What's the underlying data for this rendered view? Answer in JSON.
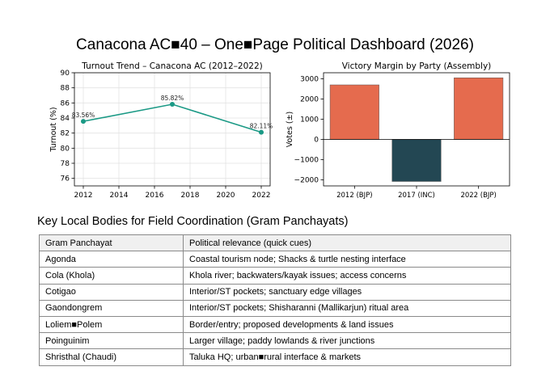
{
  "page": {
    "title": "Canacona AC■40 – One■Page Political Dashboard (2026)"
  },
  "chart_data": [
    {
      "type": "line",
      "title": "Turnout Trend – Canacona AC (2012–2022)",
      "xlabel": "",
      "ylabel": "Turnout (%)",
      "x": [
        2012,
        2017,
        2022
      ],
      "y": [
        83.56,
        85.82,
        82.11
      ],
      "point_labels": [
        "83.56%",
        "85.82%",
        "82.11%"
      ],
      "xlim": [
        2011.5,
        2022.5
      ],
      "ylim": [
        75,
        90
      ],
      "xticks": [
        2012,
        2014,
        2016,
        2018,
        2020,
        2022
      ],
      "yticks": [
        76,
        78,
        80,
        82,
        84,
        86,
        88,
        90
      ],
      "grid": true,
      "color": "#1a9985"
    },
    {
      "type": "bar",
      "title": "Victory Margin by Party (Assembly)",
      "xlabel": "",
      "ylabel": "Votes (±)",
      "categories": [
        "2012 (BJP)",
        "2017 (INC)",
        "2022 (BJP)"
      ],
      "values": [
        2700,
        -2080,
        3050
      ],
      "colors": [
        "#e56b4e",
        "#234753",
        "#e56b4e"
      ],
      "ylim": [
        -2300,
        3300
      ],
      "yticks": [
        -2000,
        -1000,
        0,
        1000,
        2000,
        3000
      ],
      "ytick_labels": [
        "−2000",
        "−1000",
        "0",
        "1000",
        "2000",
        "3000"
      ],
      "grid": false
    }
  ],
  "table": {
    "title": "Key Local Bodies for Field Coordination (Gram Panchayats)",
    "headers": [
      "Gram Panchayat",
      "Political relevance (quick cues)"
    ],
    "rows": [
      [
        "Agonda",
        "Coastal tourism node; Shacks & turtle nesting interface"
      ],
      [
        "Cola (Khola)",
        "Khola river; backwaters/kayak issues; access concerns"
      ],
      [
        "Cotigao",
        "Interior/ST pockets; sanctuary edge villages"
      ],
      [
        "Gaondongrem",
        "Interior/ST pockets; Shisharanni (Mallikarjun) ritual area"
      ],
      [
        "Loliem■Polem",
        "Border/entry; proposed developments & land issues"
      ],
      [
        "Poinguinim",
        "Larger village; paddy lowlands & river junctions"
      ],
      [
        "Shristhal (Chaudi)",
        "Taluka HQ; urban■rural interface & markets"
      ]
    ]
  }
}
